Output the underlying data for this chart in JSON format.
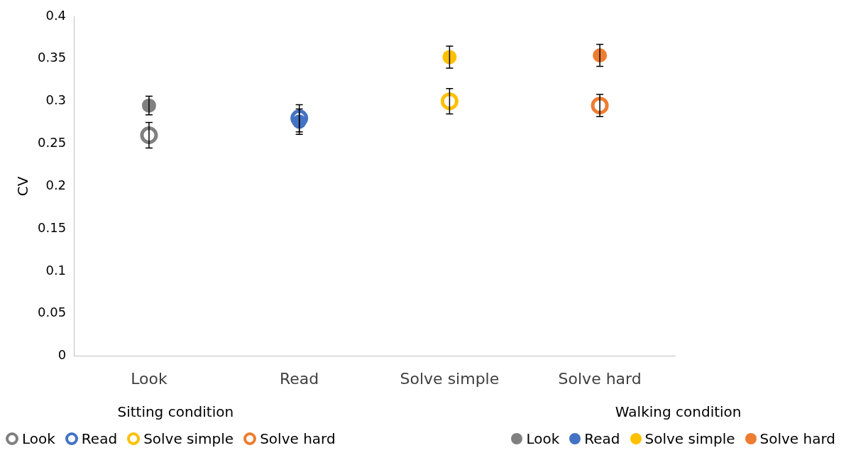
{
  "chart_data": {
    "type": "scatter",
    "ylabel": "CV",
    "categories": [
      "Look",
      "Read",
      "Solve simple",
      "Solve hard"
    ],
    "ylim": [
      0,
      0.4
    ],
    "yticks": [
      0,
      0.05,
      0.1,
      0.15,
      0.2,
      0.25,
      0.3,
      0.35,
      0.4
    ],
    "grid": false,
    "legend": "bottom",
    "marker": "circle",
    "legend_title": "Sitting condition",
    "annotations": [
      "Walking condition"
    ],
    "series": [
      {
        "name": "Look",
        "color": "#808080",
        "values": [
          0.26,
          null,
          null,
          null
        ],
        "errors": [
          0.015,
          null,
          null,
          null
        ]
      },
      {
        "name": "Read",
        "color": "#4472c4",
        "values": [
          null,
          0.28,
          null,
          null
        ],
        "errors": [
          null,
          0.016,
          null,
          null
        ]
      },
      {
        "name": "Solve simple",
        "color": "#ffc000",
        "values": [
          null,
          null,
          0.3,
          null
        ],
        "errors": [
          null,
          null,
          0.015,
          null
        ]
      },
      {
        "name": "Solve hard",
        "color": "#ed7d31",
        "values": [
          null,
          null,
          null,
          0.295
        ],
        "errors": [
          null,
          null,
          null,
          0.013
        ]
      },
      {
        "name": "Look",
        "color": "#808080",
        "values": [
          0.295,
          null,
          null,
          null
        ],
        "errors": [
          0.011,
          null,
          null,
          null
        ]
      },
      {
        "name": "Read",
        "color": "#4472c4",
        "values": [
          null,
          0.276,
          null,
          null
        ],
        "errors": [
          null,
          0.015,
          null,
          null
        ]
      },
      {
        "name": "Solve simple",
        "color": "#ffc000",
        "values": [
          null,
          null,
          0.352,
          null
        ],
        "errors": [
          null,
          null,
          0.013,
          null
        ]
      },
      {
        "name": "Solve hard",
        "color": "#ed7d31",
        "values": [
          null,
          null,
          null,
          0.354
        ],
        "errors": [
          null,
          null,
          null,
          0.013
        ]
      }
    ]
  }
}
